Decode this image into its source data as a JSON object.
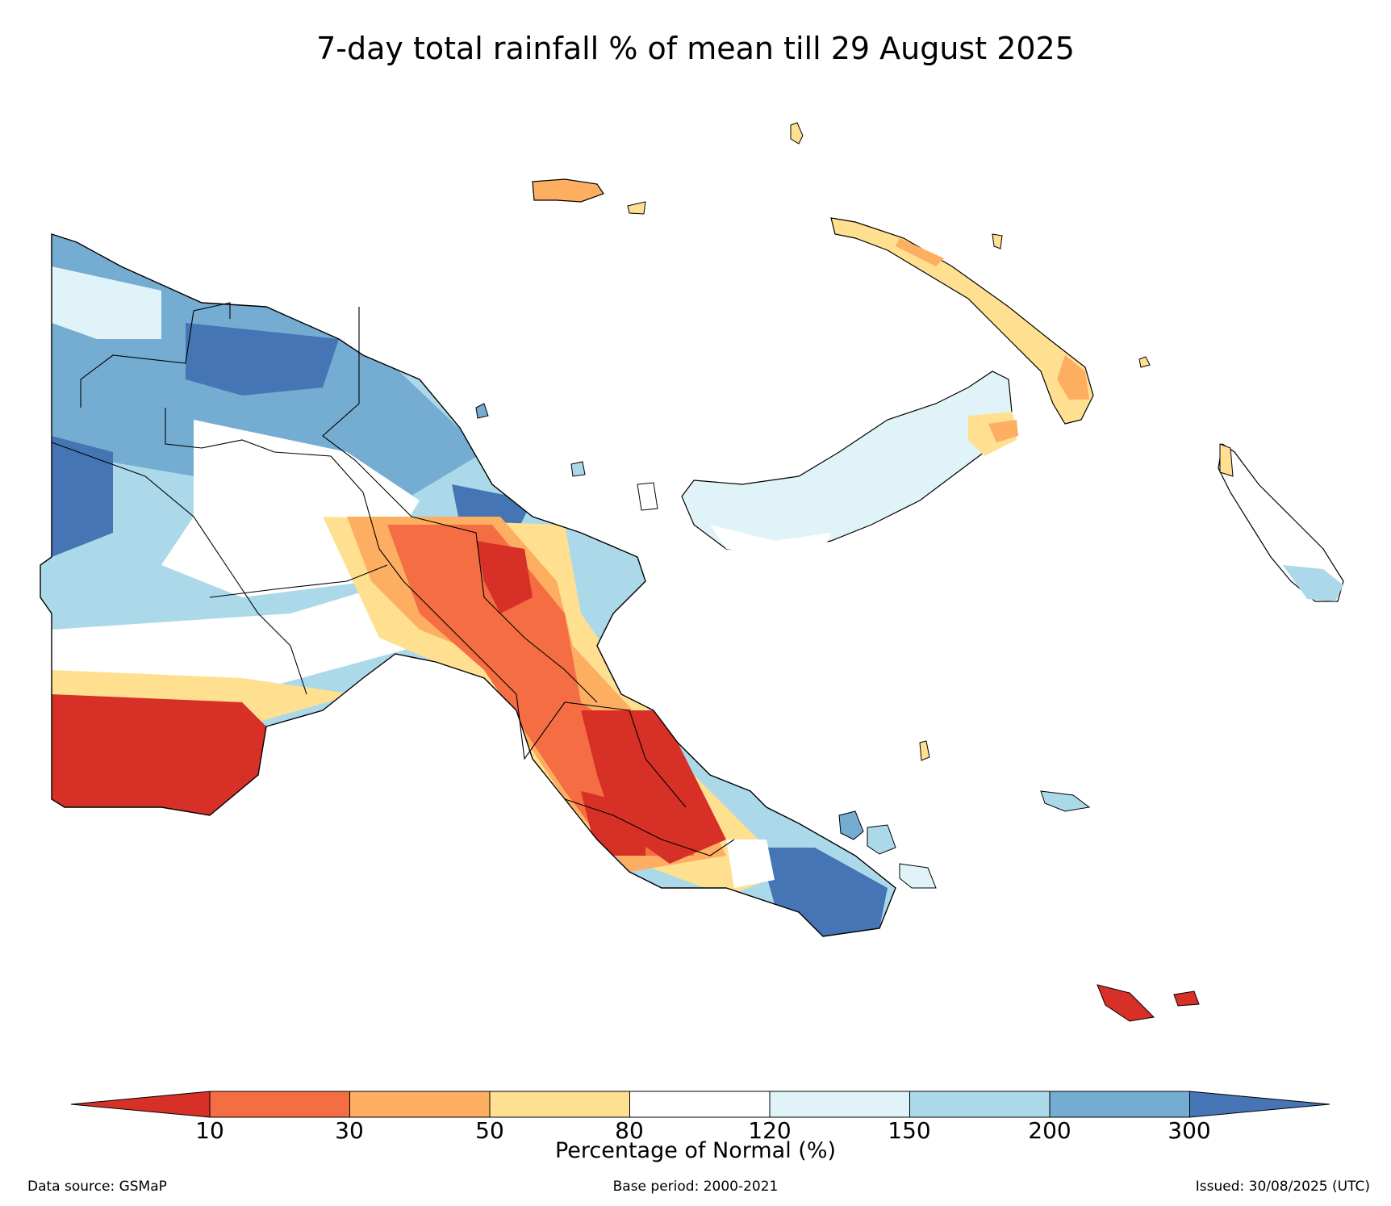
{
  "title": "7-day total rainfall % of mean till 29 August 2025",
  "legend": {
    "ticks": [
      "10",
      "30",
      "50",
      "80",
      "120",
      "150",
      "200",
      "300"
    ],
    "label": "Percentage of Normal (%)",
    "colors": [
      "#d73027",
      "#f46d43",
      "#fdae61",
      "#fee090",
      "#ffffff",
      "#e0f3f8",
      "#abd9e9",
      "#74add1",
      "#4575b4"
    ]
  },
  "footer": {
    "source": "Data source: GSMaP",
    "base_period": "Base period: 2000-2021",
    "issued": "Issued: 30/08/2025 (UTC)"
  }
}
